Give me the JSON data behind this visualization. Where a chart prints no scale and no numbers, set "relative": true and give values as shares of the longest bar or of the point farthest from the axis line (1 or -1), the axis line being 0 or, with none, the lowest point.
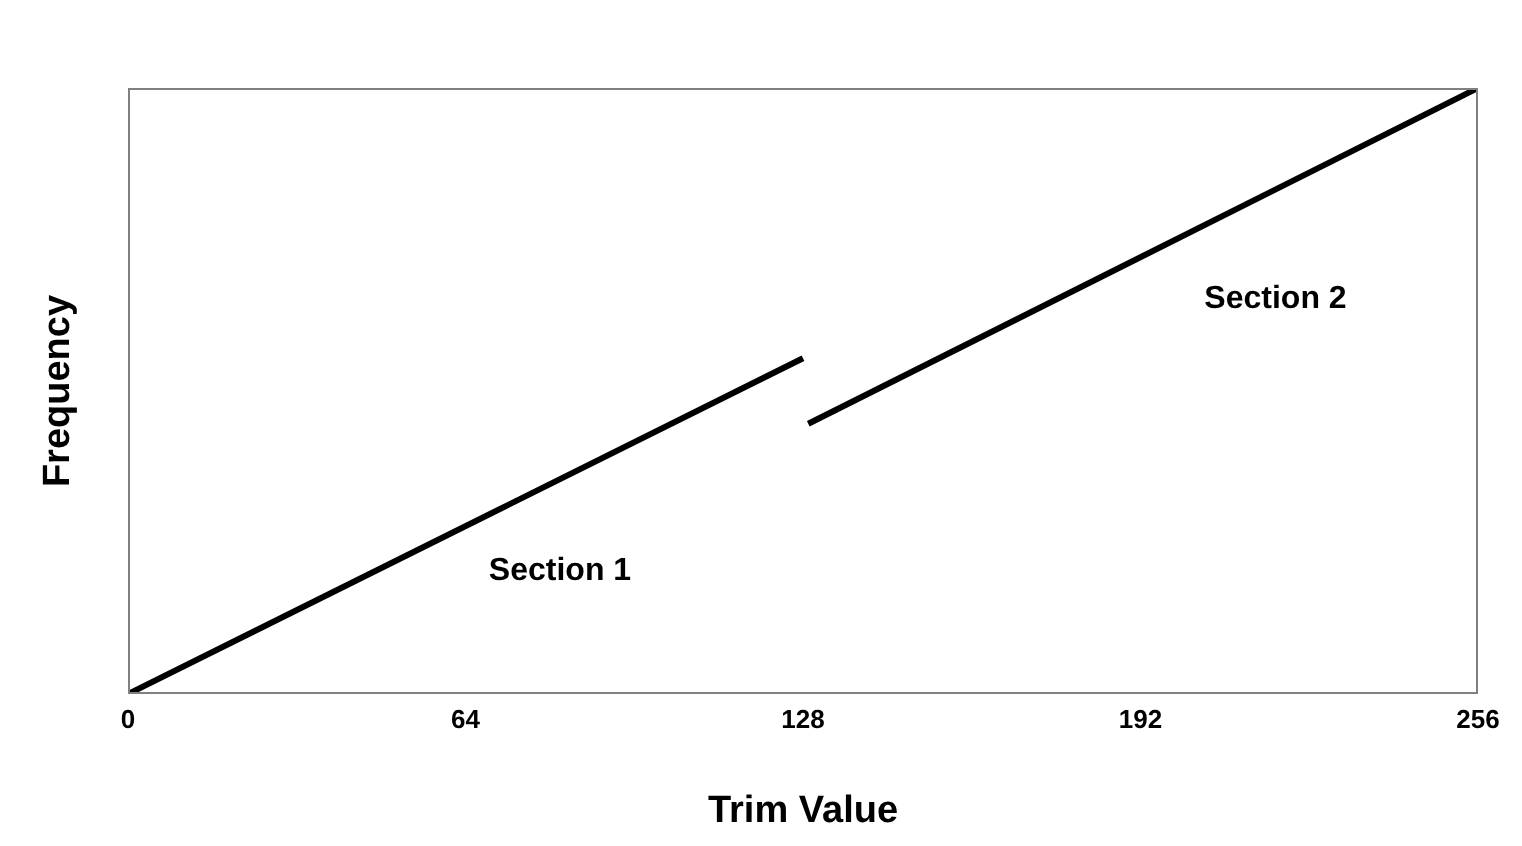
{
  "chart_data": {
    "type": "line",
    "xlabel": "Trim Value",
    "ylabel": "Frequency",
    "relative": true,
    "xlim": [
      0,
      256
    ],
    "xticks": [
      0,
      64,
      128,
      192,
      256
    ],
    "series": [
      {
        "color": "#000000",
        "x": [
          0,
          128
        ],
        "values": [
          0,
          0.554
        ]
      },
      {
        "color": "#000000",
        "x": [
          129,
          256
        ],
        "values": [
          0.446,
          1
        ]
      }
    ],
    "annotations": [
      "Section 1",
      "Section 2"
    ]
  }
}
